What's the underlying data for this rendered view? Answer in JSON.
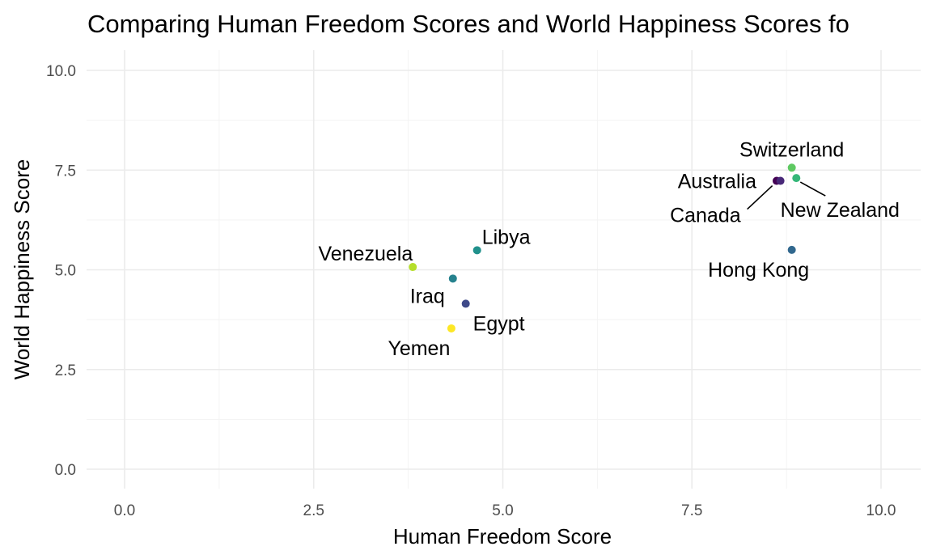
{
  "chart_data": {
    "type": "scatter",
    "title": "Comparing Human Freedom Scores and World Happiness Scores fo",
    "xlabel": "Human Freedom Score",
    "ylabel": "World Happiness Score",
    "xlim": [
      0,
      10
    ],
    "ylim": [
      0,
      10
    ],
    "x_ticks": [
      "0.0",
      "2.5",
      "5.0",
      "7.5",
      "10.0"
    ],
    "y_ticks": [
      "0.0",
      "2.5",
      "5.0",
      "7.5",
      "10.0"
    ],
    "grid": true,
    "legend": "none",
    "points": [
      {
        "label": "Switzerland",
        "x": 8.82,
        "y": 7.56,
        "color": "#5ec962"
      },
      {
        "label": "New Zealand",
        "x": 8.88,
        "y": 7.3,
        "color": "#35b779"
      },
      {
        "label": "Australia",
        "x": 8.62,
        "y": 7.23,
        "color": "#440154"
      },
      {
        "label": "Canada",
        "x": 8.67,
        "y": 7.23,
        "color": "#482878"
      },
      {
        "label": "Hong Kong",
        "x": 8.82,
        "y": 5.5,
        "color": "#31688e"
      },
      {
        "label": "Libya",
        "x": 4.66,
        "y": 5.49,
        "color": "#21918c"
      },
      {
        "label": "Venezuela",
        "x": 3.81,
        "y": 5.07,
        "color": "#b5de2b"
      },
      {
        "label": "Iraq",
        "x": 4.34,
        "y": 4.78,
        "color": "#26828e"
      },
      {
        "label": "Egypt",
        "x": 4.51,
        "y": 4.15,
        "color": "#3e4989"
      },
      {
        "label": "Yemen",
        "x": 4.32,
        "y": 3.53,
        "color": "#fde725"
      }
    ]
  }
}
